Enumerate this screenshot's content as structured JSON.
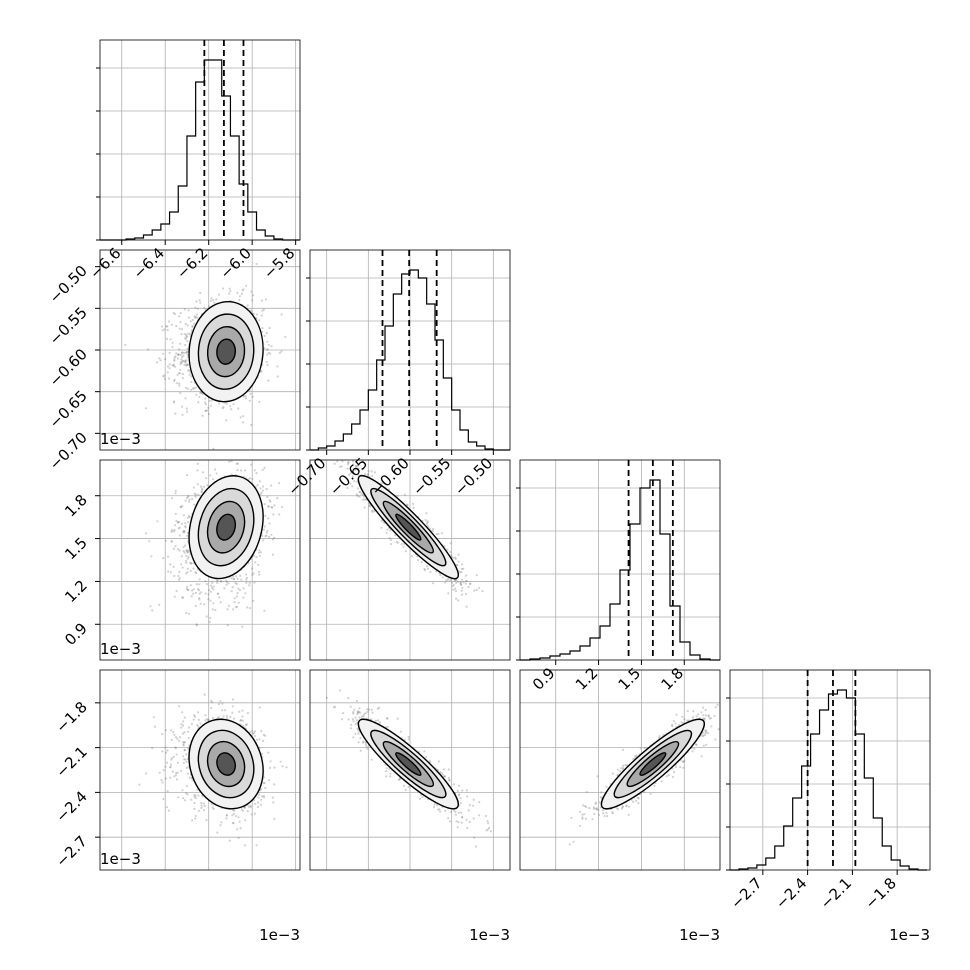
{
  "chart_data": {
    "type": "corner",
    "grid": true,
    "quantile_lines": "dashed",
    "variables": [
      {
        "id": "p0",
        "offset_label": "1e−3",
        "range": [
          -6.7,
          -5.78
        ],
        "ticks": [
          -6.6,
          -6.4,
          -6.2,
          -6.0,
          -5.8
        ],
        "tick_labels": [
          "−6.6",
          "−6.4",
          "−6.2",
          "−6.0",
          "−5.8"
        ],
        "quantiles": [
          -6.22,
          -6.13,
          -6.04
        ],
        "hist_bins": [
          -6.7,
          -6.66,
          -6.62,
          -6.58,
          -6.54,
          -6.5,
          -6.46,
          -6.42,
          -6.38,
          -6.34,
          -6.3,
          -6.26,
          -6.22,
          -6.18,
          -6.14,
          -6.1,
          -6.06,
          -6.02,
          -5.98,
          -5.94,
          -5.9,
          -5.86,
          -5.82,
          -5.78
        ],
        "hist_counts": [
          0.0,
          0.0,
          0.0,
          0.005,
          0.01,
          0.025,
          0.05,
          0.08,
          0.14,
          0.27,
          0.52,
          0.79,
          0.9,
          0.9,
          0.72,
          0.52,
          0.28,
          0.14,
          0.05,
          0.02,
          0.005,
          0.0,
          0.0
        ]
      },
      {
        "id": "p1",
        "offset_label": "1e−3",
        "range": [
          -0.72,
          -0.48
        ],
        "ticks": [
          -0.7,
          -0.65,
          -0.6,
          -0.55,
          -0.5
        ],
        "tick_labels": [
          "−0.70",
          "−0.65",
          "−0.60",
          "−0.55",
          "−0.50"
        ],
        "quantiles": [
          -0.633,
          -0.601,
          -0.568
        ],
        "hist_bins": [
          -0.72,
          -0.71,
          -0.7,
          -0.69,
          -0.68,
          -0.67,
          -0.66,
          -0.65,
          -0.64,
          -0.63,
          -0.62,
          -0.61,
          -0.6,
          -0.59,
          -0.58,
          -0.57,
          -0.56,
          -0.55,
          -0.54,
          -0.53,
          -0.52,
          -0.51,
          -0.5,
          -0.49,
          -0.48
        ],
        "hist_counts": [
          0.0,
          0.01,
          0.02,
          0.045,
          0.08,
          0.13,
          0.2,
          0.3,
          0.45,
          0.62,
          0.78,
          0.88,
          0.9,
          0.86,
          0.73,
          0.55,
          0.36,
          0.2,
          0.1,
          0.04,
          0.02,
          0.005,
          0.0,
          0.0
        ]
      },
      {
        "id": "p2",
        "offset_label": "1e−3",
        "range": [
          0.65,
          2.05
        ],
        "ticks": [
          0.9,
          1.2,
          1.5,
          1.8
        ],
        "tick_labels": [
          "0.9",
          "1.2",
          "1.5",
          "1.8"
        ],
        "quantiles": [
          1.41,
          1.58,
          1.72
        ],
        "hist_bins": [
          0.65,
          0.72,
          0.79,
          0.86,
          0.93,
          1.0,
          1.07,
          1.14,
          1.21,
          1.28,
          1.35,
          1.42,
          1.49,
          1.56,
          1.63,
          1.7,
          1.77,
          1.84,
          1.91,
          1.98,
          2.05
        ],
        "hist_counts": [
          0.0,
          0.005,
          0.01,
          0.02,
          0.03,
          0.045,
          0.07,
          0.11,
          0.17,
          0.28,
          0.45,
          0.68,
          0.86,
          0.9,
          0.63,
          0.27,
          0.09,
          0.025,
          0.005,
          0.0
        ]
      },
      {
        "id": "p3",
        "offset_label": "1e−3",
        "range": [
          -2.92,
          -1.58
        ],
        "ticks": [
          -2.7,
          -2.4,
          -2.1,
          -1.8
        ],
        "tick_labels": [
          "−2.7",
          "−2.4",
          "−2.1",
          "−1.8"
        ],
        "quantiles": [
          -2.4,
          -2.23,
          -2.08
        ],
        "hist_bins": [
          -2.92,
          -2.86,
          -2.8,
          -2.74,
          -2.68,
          -2.62,
          -2.56,
          -2.5,
          -2.44,
          -2.38,
          -2.32,
          -2.26,
          -2.2,
          -2.14,
          -2.08,
          -2.02,
          -1.96,
          -1.9,
          -1.84,
          -1.78,
          -1.72,
          -1.66,
          -1.6
        ],
        "hist_counts": [
          0.0,
          0.005,
          0.01,
          0.025,
          0.06,
          0.12,
          0.22,
          0.36,
          0.52,
          0.68,
          0.8,
          0.88,
          0.9,
          0.86,
          0.68,
          0.46,
          0.26,
          0.12,
          0.05,
          0.02,
          0.005,
          0.0
        ]
      }
    ],
    "pairs": [
      {
        "x": 1,
        "y": 2,
        "center": [
          -6.12,
          -0.602
        ],
        "sigma": [
          0.085,
          0.03
        ],
        "corr": 0.05,
        "skew_x_low": 1.35
      },
      {
        "x": 1,
        "y": 3,
        "center": [
          -6.12,
          1.58
        ],
        "sigma": [
          0.085,
          0.18
        ],
        "corr": 0.2,
        "skew_x_low": 1.35,
        "tail_low_y": true
      },
      {
        "x": 1,
        "y": 4,
        "center": [
          -6.12,
          -2.21
        ],
        "sigma": [
          0.085,
          0.15
        ],
        "corr": -0.15,
        "skew_x_low": 1.3
      },
      {
        "x": 2,
        "y": 3,
        "center": [
          -0.602,
          1.58
        ],
        "sigma": [
          0.03,
          0.18
        ],
        "corr": -0.93
      },
      {
        "x": 2,
        "y": 4,
        "center": [
          -0.602,
          -2.21
        ],
        "sigma": [
          0.03,
          0.15
        ],
        "corr": -0.9
      },
      {
        "x": 3,
        "y": 4,
        "center": [
          1.58,
          -2.21
        ],
        "sigma": [
          0.18,
          0.15
        ],
        "corr": 0.9
      }
    ]
  }
}
